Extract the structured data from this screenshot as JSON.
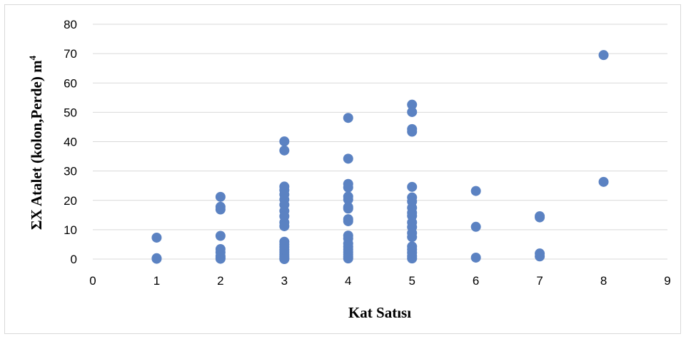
{
  "chart_data": {
    "type": "scatter",
    "xlabel": "Kat Satısı",
    "ylabel": "ΣX Atalet (kolon,Perde) m",
    "ylabel_superscript": "4",
    "xlim": [
      0,
      9
    ],
    "ylim": [
      0,
      80
    ],
    "x_ticks": [
      0,
      1,
      2,
      3,
      4,
      5,
      6,
      7,
      8,
      9
    ],
    "y_ticks": [
      0,
      10,
      20,
      30,
      40,
      50,
      60,
      70,
      80
    ],
    "grid": "horizontal",
    "legend": "none",
    "marker_color": "#5b82c2",
    "points": [
      [
        1,
        7.3
      ],
      [
        1,
        0.3
      ],
      [
        1,
        0.1
      ],
      [
        2,
        21.2
      ],
      [
        2,
        17.8
      ],
      [
        2,
        16.9
      ],
      [
        2,
        7.9
      ],
      [
        2,
        3.4
      ],
      [
        2,
        2.3
      ],
      [
        2,
        1.0
      ],
      [
        2,
        0.5
      ],
      [
        2,
        0.1
      ],
      [
        3,
        40.1
      ],
      [
        3,
        37.0
      ],
      [
        3,
        24.7
      ],
      [
        3,
        23.5
      ],
      [
        3,
        22.0
      ],
      [
        3,
        20.3
      ],
      [
        3,
        18.5
      ],
      [
        3,
        16.4
      ],
      [
        3,
        14.6
      ],
      [
        3,
        12.5
      ],
      [
        3,
        11.2
      ],
      [
        3,
        5.9
      ],
      [
        3,
        5.0
      ],
      [
        3,
        4.1
      ],
      [
        3,
        3.2
      ],
      [
        3,
        2.4
      ],
      [
        3,
        1.6
      ],
      [
        3,
        0.9
      ],
      [
        3,
        0.3
      ],
      [
        3,
        0.0
      ],
      [
        4,
        48.1
      ],
      [
        4,
        34.2
      ],
      [
        4,
        25.6
      ],
      [
        4,
        24.4
      ],
      [
        4,
        21.3
      ],
      [
        4,
        20.3
      ],
      [
        4,
        17.7
      ],
      [
        4,
        17.2
      ],
      [
        4,
        13.6
      ],
      [
        4,
        12.9
      ],
      [
        4,
        8.0
      ],
      [
        4,
        7.0
      ],
      [
        4,
        5.3
      ],
      [
        4,
        4.2
      ],
      [
        4,
        3.3
      ],
      [
        4,
        2.4
      ],
      [
        4,
        1.6
      ],
      [
        4,
        0.8
      ],
      [
        4,
        0.2
      ],
      [
        5,
        52.6
      ],
      [
        5,
        50.1
      ],
      [
        5,
        44.3
      ],
      [
        5,
        43.4
      ],
      [
        5,
        24.6
      ],
      [
        5,
        21.0
      ],
      [
        5,
        19.6
      ],
      [
        5,
        17.5
      ],
      [
        5,
        15.8
      ],
      [
        5,
        14.7
      ],
      [
        5,
        12.5
      ],
      [
        5,
        10.9
      ],
      [
        5,
        8.9
      ],
      [
        5,
        7.5
      ],
      [
        5,
        4.3
      ],
      [
        5,
        3.3
      ],
      [
        5,
        2.2
      ],
      [
        5,
        1.0
      ],
      [
        5,
        0.2
      ],
      [
        6,
        23.2
      ],
      [
        6,
        11.0
      ],
      [
        6,
        0.5
      ],
      [
        7,
        14.6
      ],
      [
        7,
        14.2
      ],
      [
        7,
        1.9
      ],
      [
        7,
        0.9
      ],
      [
        8,
        69.5
      ],
      [
        8,
        26.3
      ]
    ]
  }
}
